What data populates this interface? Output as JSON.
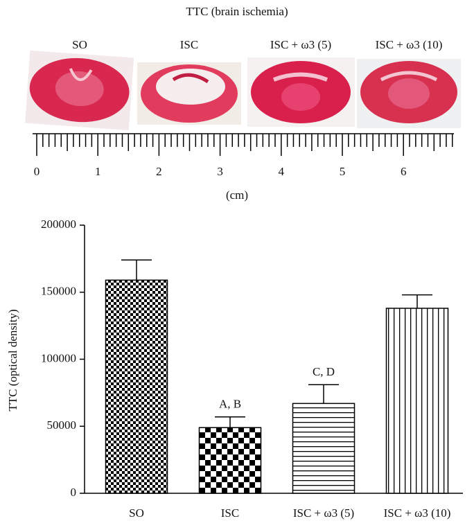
{
  "panel_a": {
    "title": "TTC (brain ischemia)",
    "image_labels": [
      "SO",
      "ISC",
      "ISC + ω3 (5)",
      "ISC + ω3 (10)"
    ],
    "ruler_ticks": [
      0,
      1,
      2,
      3,
      4,
      5,
      6
    ],
    "ruler_unit": "(cm)"
  },
  "chart_data": {
    "type": "bar",
    "y_label": "TTC (optical density)",
    "categories": [
      "SO",
      "ISC",
      "ISC + ω3 (5)",
      "ISC + ω3 (10)"
    ],
    "values": [
      159000,
      49000,
      67000,
      138000
    ],
    "errors": [
      15000,
      8000,
      14000,
      10000
    ],
    "annotations": [
      null,
      "A, B",
      "C, D",
      null
    ],
    "color": "#000000",
    "ylim": [
      0,
      200000
    ],
    "yticks": [
      0,
      50000,
      100000,
      150000,
      200000
    ]
  }
}
